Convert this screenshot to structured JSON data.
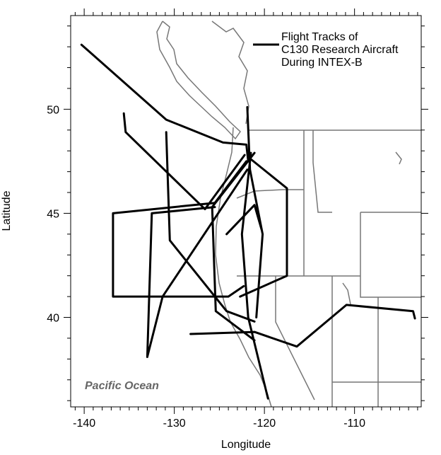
{
  "chart_data": {
    "type": "line",
    "xlabel": "Longitude",
    "ylabel": "Latitude",
    "annotation": "Pacific Ocean",
    "xlim": [
      -141.5,
      -102.6
    ],
    "ylim": [
      35.7,
      54.5
    ],
    "xticks": [
      -140,
      -130,
      -120,
      -110
    ],
    "yticks": [
      40,
      45,
      50
    ],
    "xminorticks": [
      -141,
      -139,
      -138,
      -137,
      -136,
      -135,
      -134,
      -133,
      -132,
      -131,
      -129,
      -128,
      -127,
      -126,
      -125,
      -124,
      -123,
      -122,
      -121,
      -119,
      -118,
      -117,
      -116,
      -115,
      -114,
      -113,
      -112,
      -111,
      -109,
      -108,
      -107,
      -106,
      -105,
      -104,
      -103
    ],
    "yminorticks": [
      36,
      37,
      38,
      39,
      41,
      42,
      43,
      44,
      46,
      47,
      48,
      49,
      51,
      52,
      53,
      54
    ],
    "series": [
      {
        "name": "Flight Tracks of\nC130 Research Aircraft\nDuring INTEX-B",
        "color": "#000000",
        "x": [
          -140.3,
          -130.9,
          -124.6,
          -122.0,
          -121.8,
          null,
          -121.5,
          -122.5,
          -121.8,
          -119.6,
          null,
          -122.0,
          -125.5,
          -136.8,
          -136.8,
          -124.0,
          -122.3,
          null,
          -135.6,
          -135.4,
          -126.6,
          -122.2,
          null,
          -130.9,
          -130.5,
          -124.2,
          -121.1,
          null,
          -133.0,
          -132.5,
          -125.5,
          null,
          -133.0,
          -131.3,
          -121.9,
          null,
          -128.2,
          -121.1,
          -116.4,
          -110.9,
          -103.5,
          -103.3,
          null,
          -125.8,
          -125.4,
          -121.1,
          null,
          -121.9,
          -121.6,
          -120.2,
          -120.9,
          null,
          -124.2,
          -121.1,
          -120.3,
          null,
          -121.5,
          -117.5,
          -117.5,
          -122.7,
          null,
          -125.8,
          -121.1
        ],
        "values": [
          53.1,
          49.5,
          48.4,
          48.3,
          47.5,
          null,
          47.9,
          44.0,
          40.0,
          36.1,
          null,
          47.5,
          45.5,
          45.0,
          41.0,
          41.0,
          41.5,
          null,
          49.8,
          48.9,
          45.2,
          47.8,
          null,
          48.9,
          43.7,
          40.3,
          39.8,
          null,
          38.1,
          45.0,
          45.3,
          null,
          38.1,
          41.0,
          47.1,
          null,
          39.2,
          39.3,
          38.6,
          40.6,
          40.3,
          39.95,
          null,
          45.3,
          40.3,
          38.9,
          null,
          50.1,
          47.1,
          44.0,
          40.0,
          null,
          44.0,
          45.4,
          44.2,
          null,
          47.6,
          46.2,
          42.0,
          41.0,
          null,
          45.3,
          47.9
        ]
      }
    ]
  }
}
